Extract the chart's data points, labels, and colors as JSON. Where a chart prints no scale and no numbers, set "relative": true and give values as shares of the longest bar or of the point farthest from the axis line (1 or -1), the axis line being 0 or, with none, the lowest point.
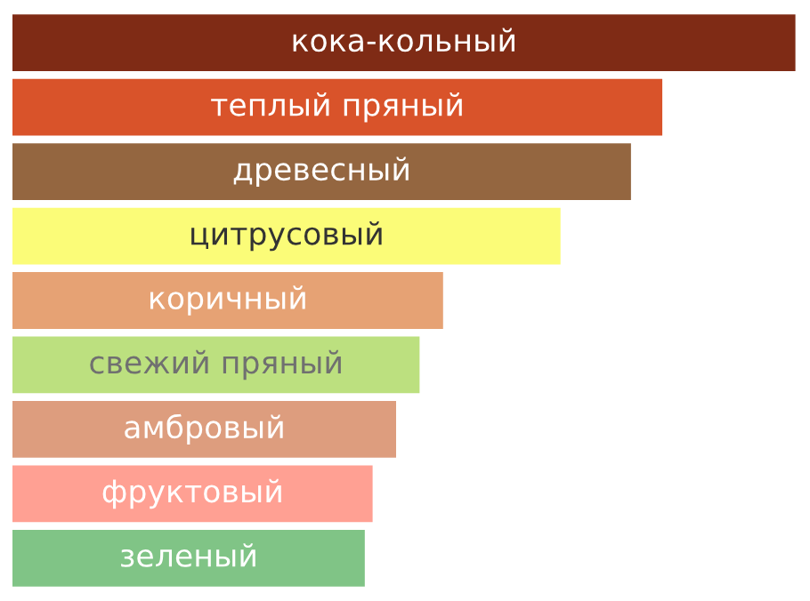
{
  "chart_data": {
    "type": "bar",
    "orientation": "horizontal",
    "relative": true,
    "categories": [
      "кока-кольный",
      "теплый пряный",
      "древесный",
      "цитрусовый",
      "коричный",
      "свежий пряный",
      "амбровый",
      "фруктовый",
      "зеленый"
    ],
    "values": [
      1,
      0.83,
      0.79,
      0.7,
      0.55,
      0.52,
      0.49,
      0.46,
      0.45
    ],
    "colors": [
      "#7f2b15",
      "#d9532a",
      "#946640",
      "#fbfc78",
      "#e6a274",
      "#bce07f",
      "#dd9d7e",
      "#ffa093",
      "#80c486"
    ]
  }
}
